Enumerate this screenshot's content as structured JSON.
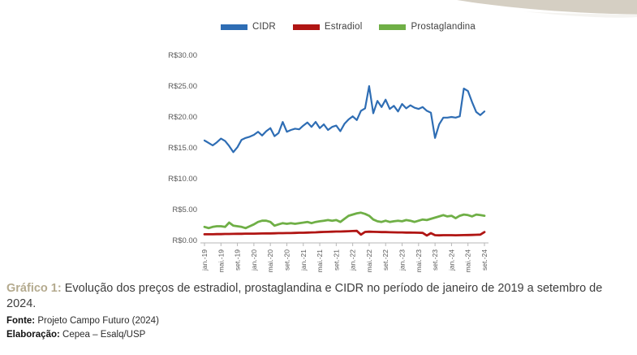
{
  "decor": {
    "corner_shape_color": "#d5cfc3",
    "corner_shape_name": "beige-curved-band"
  },
  "chart_data": {
    "type": "line",
    "title": "",
    "xlabel": "",
    "ylabel": "",
    "ylim": [
      0,
      30
    ],
    "grid": false,
    "legend_position": "top",
    "months_total": 69,
    "y_ticks": [
      "R$0.00",
      "R$5.00",
      "R$10.00",
      "R$15.00",
      "R$20.00",
      "R$25.00",
      "R$30.00"
    ],
    "x_tick_interval": 4,
    "x_tick_labels": [
      "jan.-19",
      "mai.-19",
      "set.-19",
      "jan.-20",
      "mai.-20",
      "set.-20",
      "jan.-21",
      "mai.-21",
      "set.-21",
      "jan.-22",
      "mai.-22",
      "set.-22",
      "jan.-23",
      "mai.-23",
      "set.-23",
      "jan.-24",
      "mai.-24",
      "set.-24"
    ],
    "axis_color": "#b7b7b7",
    "tick_text_color": "#595959",
    "series": [
      {
        "name": "CIDR",
        "color": "#2e6db4",
        "stroke_width": 2.2,
        "values": [
          16.2,
          15.8,
          15.4,
          15.9,
          16.5,
          16.1,
          15.3,
          14.3,
          15.1,
          16.3,
          16.6,
          16.8,
          17.1,
          17.6,
          17.0,
          17.7,
          18.2,
          16.9,
          17.4,
          19.2,
          17.6,
          17.9,
          18.1,
          18.0,
          18.6,
          19.1,
          18.4,
          19.2,
          18.2,
          18.8,
          17.9,
          18.4,
          18.6,
          17.7,
          18.9,
          19.6,
          20.1,
          19.5,
          21.0,
          21.4,
          25.0,
          20.6,
          22.6,
          21.6,
          22.8,
          21.3,
          21.8,
          20.9,
          22.1,
          21.4,
          21.9,
          21.5,
          21.3,
          21.6,
          21.0,
          20.7,
          16.6,
          18.8,
          19.9,
          19.9,
          20.0,
          19.9,
          20.1,
          24.6,
          24.2,
          22.4,
          20.8,
          20.3,
          20.9
        ]
      },
      {
        "name": "Estradiol",
        "color": "#b01513",
        "stroke_width": 2.8,
        "values": [
          1.0,
          1.0,
          1.0,
          1.02,
          1.03,
          1.05,
          1.05,
          1.06,
          1.08,
          1.08,
          1.1,
          1.1,
          1.1,
          1.12,
          1.13,
          1.15,
          1.15,
          1.16,
          1.18,
          1.18,
          1.2,
          1.2,
          1.22,
          1.25,
          1.25,
          1.28,
          1.3,
          1.32,
          1.35,
          1.38,
          1.4,
          1.42,
          1.45,
          1.45,
          1.48,
          1.5,
          1.52,
          1.55,
          0.95,
          1.38,
          1.42,
          1.4,
          1.38,
          1.36,
          1.35,
          1.33,
          1.32,
          1.3,
          1.3,
          1.28,
          1.28,
          1.26,
          1.25,
          1.22,
          0.8,
          1.18,
          0.85,
          0.83,
          0.85,
          0.85,
          0.85,
          0.84,
          0.85,
          0.87,
          0.88,
          0.9,
          0.92,
          0.95,
          1.35
        ]
      },
      {
        "name": "Prostaglandina",
        "color": "#6faf46",
        "stroke_width": 2.8,
        "values": [
          2.2,
          2.0,
          2.2,
          2.3,
          2.3,
          2.2,
          2.9,
          2.4,
          2.3,
          2.2,
          2.0,
          2.3,
          2.6,
          3.0,
          3.2,
          3.2,
          3.0,
          2.4,
          2.6,
          2.8,
          2.7,
          2.8,
          2.7,
          2.8,
          2.9,
          3.0,
          2.8,
          3.0,
          3.1,
          3.2,
          3.3,
          3.2,
          3.3,
          3.0,
          3.5,
          4.0,
          4.2,
          4.4,
          4.5,
          4.3,
          4.0,
          3.4,
          3.1,
          3.0,
          3.2,
          3.0,
          3.1,
          3.2,
          3.1,
          3.3,
          3.2,
          3.0,
          3.2,
          3.4,
          3.3,
          3.5,
          3.7,
          3.9,
          4.1,
          3.9,
          4.0,
          3.6,
          4.0,
          4.2,
          4.1,
          3.9,
          4.2,
          4.1,
          4.0
        ]
      }
    ]
  },
  "caption": {
    "label": "Gráfico 1:",
    "text": " Evolução dos preços de estradiol, prostaglandina e CIDR no período de janeiro de 2019 a setembro de 2024."
  },
  "source": {
    "label": "Fonte:",
    "text": " Projeto Campo Futuro (2024)"
  },
  "elaboration": {
    "label": "Elaboração:",
    "text": " Cepea – Esalq/USP"
  }
}
